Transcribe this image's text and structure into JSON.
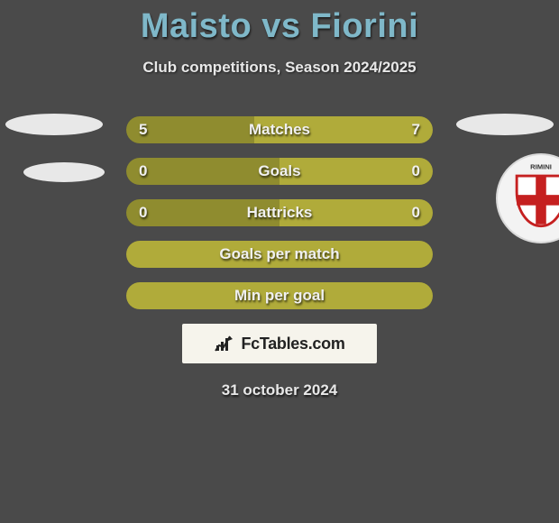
{
  "title": "Maisto vs Fiorini",
  "subtitle": "Club competitions, Season 2024/2025",
  "date": "31 october 2024",
  "watermark": "FcTables.com",
  "colors": {
    "player1_bar": "#8f8c2f",
    "player2_bar": "#b0ab3a",
    "full_bar": "#b0ab3a",
    "bg": "#4a4a4a"
  },
  "rows": [
    {
      "label": "Matches",
      "left": "5",
      "right": "7",
      "left_pct": 41.7,
      "right_pct": 58.3,
      "show_vals": true
    },
    {
      "label": "Goals",
      "left": "0",
      "right": "0",
      "left_pct": 50,
      "right_pct": 50,
      "show_vals": true
    },
    {
      "label": "Hattricks",
      "left": "0",
      "right": "0",
      "left_pct": 50,
      "right_pct": 50,
      "show_vals": true
    },
    {
      "label": "Goals per match",
      "left": "",
      "right": "",
      "left_pct": 100,
      "right_pct": 0,
      "show_vals": false
    },
    {
      "label": "Min per goal",
      "left": "",
      "right": "",
      "left_pct": 100,
      "right_pct": 0,
      "show_vals": false
    }
  ]
}
